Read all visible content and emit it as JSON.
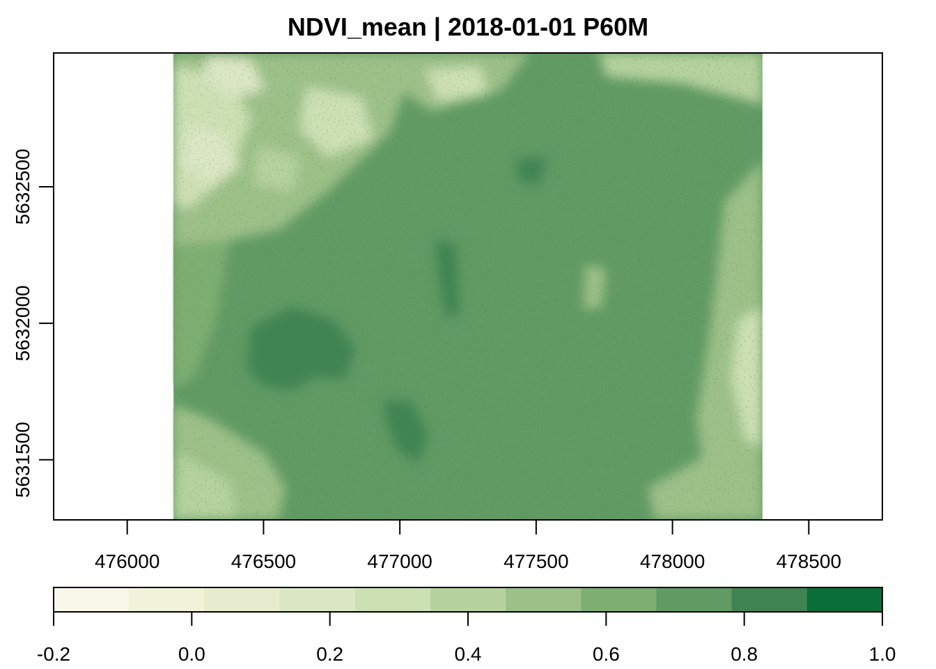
{
  "chart_data": {
    "type": "heatmap",
    "title": "NDVI_mean | 2018-01-01 P60M",
    "xlabel": "",
    "ylabel": "",
    "x_ticks": [
      476000,
      476500,
      477000,
      477500,
      478000,
      478500
    ],
    "x_tick_labels": [
      "476000",
      "476500",
      "477000",
      "477500",
      "478000",
      "478500"
    ],
    "y_ticks": [
      5631500,
      5632000,
      5632500
    ],
    "y_tick_labels": [
      "5631500",
      "5632000",
      "5632500"
    ],
    "xlim": [
      475730,
      478770
    ],
    "ylim": [
      5631280,
      5632990
    ],
    "raster_extent": {
      "xmin": 476170,
      "xmax": 478330,
      "ymin": 5631280,
      "ymax": 5632990
    },
    "grid": false,
    "legend": {
      "placement": "bottom",
      "range": [
        -0.2,
        1.0
      ],
      "ticks": [
        -0.2,
        0.0,
        0.2,
        0.4,
        0.6,
        0.8,
        1.0
      ],
      "tick_labels": [
        "-0.2",
        "0.0",
        "0.2",
        "0.4",
        "0.6",
        "0.8",
        "1.0"
      ],
      "colors": [
        "#f8f7ea",
        "#f1f2da",
        "#e6eccd",
        "#dbe6c4",
        "#cde0b4",
        "#b6d29e",
        "#9dc088",
        "#7eaf72",
        "#619a63",
        "#3f8452",
        "#0a6e3a"
      ]
    },
    "value_description": "NDVI mean values mostly between 0.6 and 0.8 over the center; higher values (0.8-0.9) in darker patches; lower values (0.2-0.5) in the upper-left and along the edges."
  }
}
